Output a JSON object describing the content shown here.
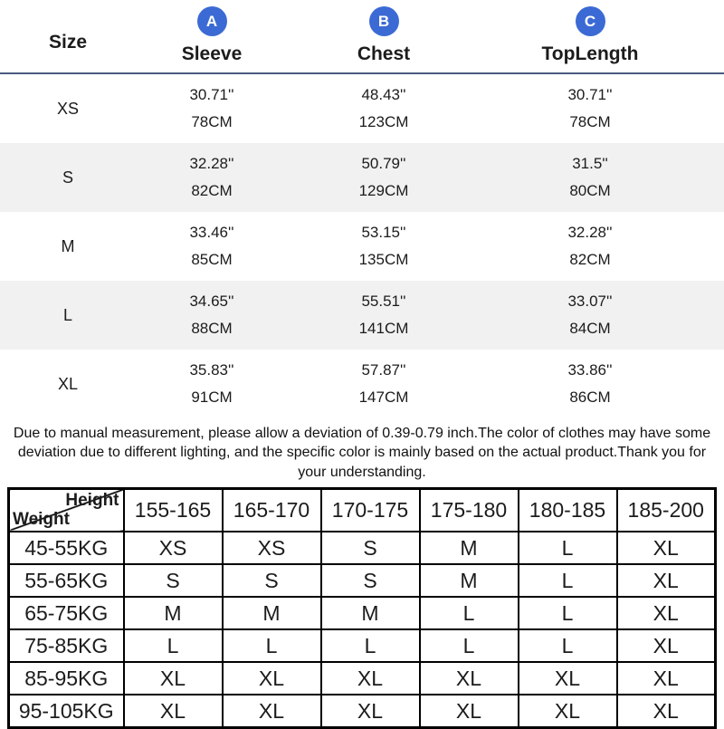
{
  "colors": {
    "accent_blue": "#3c6ad5",
    "header_rule": "#4a5b80",
    "row_stripe": "#f1f1f1",
    "table_border": "#000000",
    "text": "#1c1c1c"
  },
  "size_chart": {
    "size_label": "Size",
    "columns": [
      {
        "letter": "A",
        "label": "Sleeve"
      },
      {
        "letter": "B",
        "label": "Chest"
      },
      {
        "letter": "C",
        "label": "TopLength"
      }
    ],
    "rows": [
      {
        "size": "XS",
        "sleeve_in": "30.71''",
        "sleeve_cm": "78CM",
        "chest_in": "48.43''",
        "chest_cm": "123CM",
        "top_in": "30.71''",
        "top_cm": "78CM"
      },
      {
        "size": "S",
        "sleeve_in": "32.28''",
        "sleeve_cm": "82CM",
        "chest_in": "50.79''",
        "chest_cm": "129CM",
        "top_in": "31.5''",
        "top_cm": "80CM"
      },
      {
        "size": "M",
        "sleeve_in": "33.46''",
        "sleeve_cm": "85CM",
        "chest_in": "53.15''",
        "chest_cm": "135CM",
        "top_in": "32.28''",
        "top_cm": "82CM"
      },
      {
        "size": "L",
        "sleeve_in": "34.65''",
        "sleeve_cm": "88CM",
        "chest_in": "55.51''",
        "chest_cm": "141CM",
        "top_in": "33.07''",
        "top_cm": "84CM"
      },
      {
        "size": "XL",
        "sleeve_in": "35.83''",
        "sleeve_cm": "91CM",
        "chest_in": "57.87''",
        "chest_cm": "147CM",
        "top_in": "33.86''",
        "top_cm": "86CM"
      }
    ]
  },
  "disclaimer": "Due to manual measurement, please allow a deviation of 0.39-0.79 inch.The color of clothes may have some deviation due to different lighting, and the specific color is mainly based on the actual product.Thank you for your understanding.",
  "fit_table": {
    "corner": {
      "top": "Height",
      "bottom": "Weight"
    },
    "height_columns": [
      "155-165",
      "165-170",
      "170-175",
      "175-180",
      "180-185",
      "185-200"
    ],
    "rows": [
      {
        "weight": "45-55KG",
        "sizes": [
          "XS",
          "XS",
          "S",
          "M",
          "L",
          "XL"
        ]
      },
      {
        "weight": "55-65KG",
        "sizes": [
          "S",
          "S",
          "S",
          "M",
          "L",
          "XL"
        ]
      },
      {
        "weight": "65-75KG",
        "sizes": [
          "M",
          "M",
          "M",
          "L",
          "L",
          "XL"
        ]
      },
      {
        "weight": "75-85KG",
        "sizes": [
          "L",
          "L",
          "L",
          "L",
          "L",
          "XL"
        ]
      },
      {
        "weight": "85-95KG",
        "sizes": [
          "XL",
          "XL",
          "XL",
          "XL",
          "XL",
          "XL"
        ]
      },
      {
        "weight": "95-105KG",
        "sizes": [
          "XL",
          "XL",
          "XL",
          "XL",
          "XL",
          "XL"
        ]
      }
    ]
  }
}
